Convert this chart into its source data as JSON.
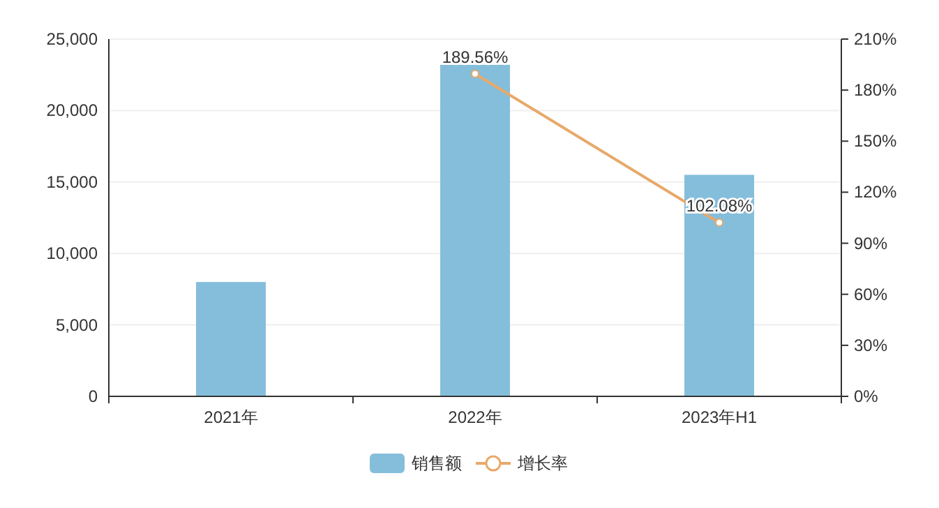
{
  "chart_data": {
    "type": "bar",
    "categories": [
      "2021年",
      "2022年",
      "2023年H1"
    ],
    "series": [
      {
        "name": "销售额",
        "color": "#85bedb",
        "values": [
          8000,
          23200,
          15500
        ]
      },
      {
        "name": "增长率",
        "type": "line",
        "axis": "y2",
        "color": "#e8a96a",
        "values": [
          null,
          189.56,
          102.08
        ],
        "value_labels": [
          null,
          "189.56%",
          "102.08%"
        ]
      }
    ],
    "ylim": [
      0,
      25000
    ],
    "yticks": [
      0,
      {
        "value": 5000,
        "label": "5,000"
      },
      {
        "value": 10000,
        "label": "10,000"
      },
      {
        "value": 15000,
        "label": "15,000"
      },
      {
        "value": 20000,
        "label": "20,000"
      },
      {
        "value": 25000,
        "label": "25,000"
      }
    ],
    "y2lim": [
      0,
      210
    ],
    "y2ticks": [
      {
        "value": 0,
        "label": "0%"
      },
      {
        "value": 30,
        "label": "30%"
      },
      {
        "value": 60,
        "label": "60%"
      },
      {
        "value": 90,
        "label": "90%"
      },
      {
        "value": 120,
        "label": "120%"
      },
      {
        "value": 150,
        "label": "150%"
      },
      {
        "value": 180,
        "label": "180%"
      },
      {
        "value": 210,
        "label": "210%"
      }
    ],
    "grid": "y",
    "legend": "bottom",
    "marker": "circle"
  }
}
